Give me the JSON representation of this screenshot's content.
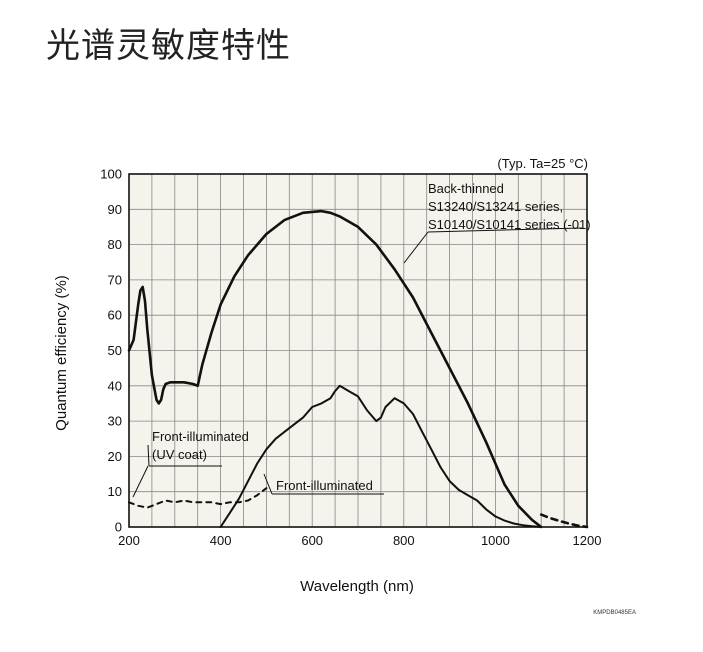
{
  "page": {
    "title": "光谱灵敏度特性"
  },
  "chart_data": {
    "type": "line",
    "title": "",
    "condition": "(Typ. Ta=25 °C)",
    "xlabel": "Wavelength (nm)",
    "ylabel": "Quantum efficiency (%)",
    "xlim": [
      200,
      1200
    ],
    "ylim": [
      0,
      100
    ],
    "x_ticks": [
      200,
      400,
      600,
      800,
      1000,
      1200
    ],
    "y_ticks": [
      0,
      10,
      20,
      30,
      40,
      50,
      60,
      70,
      80,
      90,
      100
    ],
    "grid": true,
    "figure_code": "KMPDB0485EA",
    "series": [
      {
        "key": "back_thinned",
        "name": "Back-thinned S13240/S13241 series, S10140/S10141 series (-01)",
        "label_lines": [
          "Back-thinned",
          "S13240/S13241 series,",
          "S10140/S10141 series (-01)"
        ],
        "style": "solid-bold",
        "x": [
          200,
          210,
          220,
          225,
          230,
          235,
          240,
          250,
          260,
          265,
          270,
          275,
          280,
          290,
          300,
          320,
          340,
          350,
          360,
          380,
          400,
          430,
          460,
          500,
          540,
          580,
          620,
          640,
          660,
          700,
          740,
          780,
          820,
          860,
          900,
          940,
          980,
          1000,
          1020,
          1050,
          1080,
          1100
        ],
        "y": [
          50,
          53,
          63,
          67,
          68,
          64,
          56,
          43,
          36,
          35,
          36,
          39,
          40.5,
          41,
          41,
          41,
          40.5,
          40,
          46,
          55,
          63,
          71,
          77,
          83,
          87,
          89,
          89.5,
          89,
          88,
          85,
          80,
          73,
          65,
          55,
          45,
          35,
          24,
          18,
          12,
          6,
          2,
          0
        ]
      },
      {
        "key": "back_thinned_tail",
        "name": "",
        "style": "dashed-bold",
        "x": [
          1100,
          1120,
          1140,
          1160,
          1180,
          1200
        ],
        "y": [
          3.5,
          2.5,
          1.7,
          1,
          0.4,
          0
        ]
      },
      {
        "key": "front_illuminated",
        "name": "Front-illuminated",
        "style": "solid",
        "x": [
          400,
          420,
          440,
          460,
          480,
          500,
          520,
          540,
          560,
          580,
          600,
          620,
          640,
          650,
          660,
          680,
          700,
          720,
          740,
          750,
          760,
          780,
          800,
          820,
          840,
          860,
          880,
          900,
          920,
          940,
          960,
          980,
          1000,
          1020,
          1040,
          1060,
          1080,
          1100
        ],
        "y": [
          0,
          4,
          8,
          13,
          18,
          22,
          25,
          27,
          29,
          31,
          34,
          35,
          36.5,
          38.5,
          40,
          38.5,
          37,
          33,
          30,
          31,
          34,
          36.5,
          35,
          32,
          27,
          22,
          17,
          13,
          10.5,
          9,
          7.5,
          5,
          3,
          1.8,
          1,
          0.5,
          0.2,
          0
        ]
      },
      {
        "key": "front_illuminated_uv",
        "name": "Front-illuminated (UV coat)",
        "label_lines": [
          "Front-illuminated",
          "(UV coat)"
        ],
        "style": "dashed",
        "x": [
          200,
          220,
          240,
          260,
          280,
          300,
          320,
          340,
          360,
          380,
          400,
          420,
          440,
          460,
          480,
          500
        ],
        "y": [
          7,
          6,
          5.5,
          6.5,
          7.5,
          7,
          7.5,
          7,
          7,
          7,
          6.5,
          7,
          7,
          7.5,
          9,
          11
        ]
      }
    ],
    "annotations": {
      "front_uv_lines": [
        "Front-illuminated",
        "(UV coat)"
      ],
      "front_label": "Front-illuminated"
    }
  }
}
